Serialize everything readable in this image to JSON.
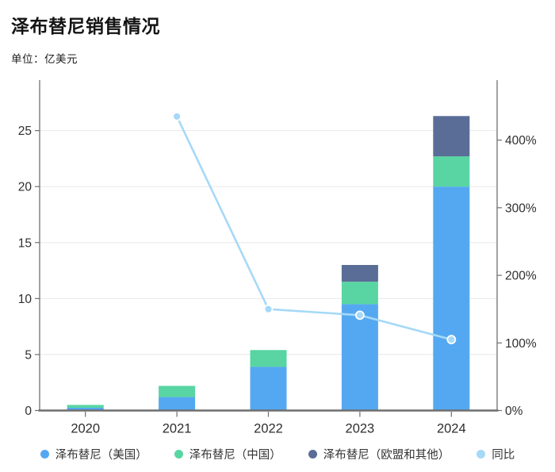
{
  "chart_data": {
    "type": "bar",
    "subtype": "stacked-bar-with-line-dual-axis",
    "title": "泽布替尼销售情况",
    "subtitle": "单位：亿美元",
    "categories": [
      "2020",
      "2021",
      "2022",
      "2023",
      "2024"
    ],
    "series": [
      {
        "name": "泽布替尼（美国）",
        "color": "#54a8f1",
        "values": [
          0.25,
          1.2,
          3.9,
          9.5,
          20.0
        ]
      },
      {
        "name": "泽布替尼（中国）",
        "color": "#58d5a2",
        "values": [
          0.25,
          1.0,
          1.5,
          2.0,
          2.7
        ]
      },
      {
        "name": "泽布替尼（欧盟和其他）",
        "color": "#5a6d96",
        "values": [
          0,
          0,
          0,
          1.5,
          3.6
        ]
      }
    ],
    "line": {
      "name": "同比",
      "color": "#a6d9f7",
      "values_pct": [
        null,
        435,
        150,
        141,
        105
      ]
    },
    "left_axis": {
      "ticks": [
        0,
        5,
        10,
        15,
        20,
        25
      ],
      "max": 28.8,
      "ylabel": ""
    },
    "right_axis": {
      "ticks_pct": [
        0,
        100,
        200,
        300,
        400
      ],
      "tick_labels": [
        "0%",
        "100%",
        "200%",
        "300%",
        "400%"
      ],
      "max_pct": 477
    },
    "grid": true,
    "legend_position": "bottom",
    "colors": {
      "grid_line": "#e8e8e8",
      "axis_line": "#6f6f6f",
      "tick_text": "#2e2e2e",
      "background": "#ffffff"
    }
  }
}
